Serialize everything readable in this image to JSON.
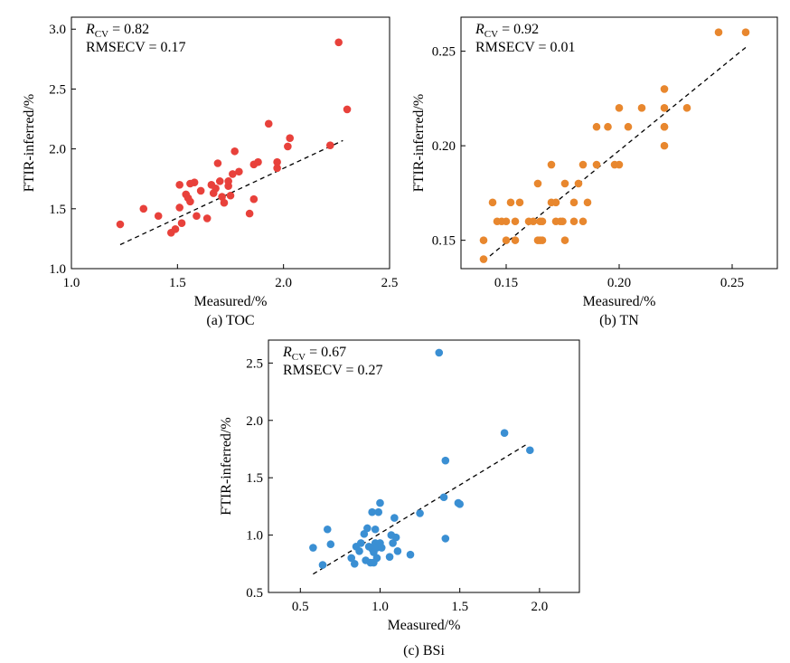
{
  "chart_data": [
    {
      "type": "scatter",
      "caption": "(a) TOC",
      "xlabel": "Measured/%",
      "ylabel": "FTIR-inferred/%",
      "xlim": [
        1.0,
        2.5
      ],
      "ylim": [
        1.0,
        3.1
      ],
      "xticks": [
        "1.0",
        "1.5",
        "2.0",
        "2.5"
      ],
      "yticks": [
        "1.0",
        "1.5",
        "2.0",
        "2.5",
        "3.0"
      ],
      "stat_r_symbol": "R",
      "stat_r_sub": "CV",
      "stat_r_value": " = 0.82",
      "stat_rmse": "RMSECV = 0.17",
      "color": "#e8413b",
      "fit_line": [
        [
          1.23,
          1.2
        ],
        [
          2.28,
          2.07
        ]
      ],
      "x": [
        1.23,
        1.34,
        1.41,
        1.47,
        1.49,
        1.51,
        1.52,
        1.54,
        1.55,
        1.56,
        1.56,
        1.58,
        1.59,
        1.61,
        1.64,
        1.66,
        1.67,
        1.68,
        1.69,
        1.7,
        1.71,
        1.72,
        1.74,
        1.74,
        1.75,
        1.76,
        1.77,
        1.79,
        1.84,
        1.86,
        1.86,
        1.88,
        1.93,
        1.97,
        1.97,
        2.02,
        2.03,
        2.22,
        2.26,
        2.3,
        1.51
      ],
      "y": [
        1.37,
        1.5,
        1.44,
        1.3,
        1.33,
        1.51,
        1.38,
        1.62,
        1.59,
        1.71,
        1.56,
        1.72,
        1.44,
        1.65,
        1.42,
        1.7,
        1.63,
        1.67,
        1.88,
        1.73,
        1.6,
        1.55,
        1.69,
        1.73,
        1.61,
        1.79,
        1.98,
        1.81,
        1.46,
        1.87,
        1.58,
        1.89,
        2.21,
        1.89,
        1.84,
        2.02,
        2.09,
        2.03,
        2.89,
        2.33,
        1.7
      ]
    },
    {
      "type": "scatter",
      "caption": "(b) TN",
      "xlabel": "Measured/%",
      "ylabel": "FTIR-inferred/%",
      "xlim": [
        0.13,
        0.27
      ],
      "ylim": [
        0.135,
        0.268
      ],
      "xticks": [
        "0.15",
        "0.20",
        "0.25"
      ],
      "yticks": [
        "0.15",
        "0.20",
        "0.25"
      ],
      "stat_r_symbol": "R",
      "stat_r_sub": "CV",
      "stat_r_value": " = 0.92",
      "stat_rmse": "RMSECV = 0.01",
      "color": "#e8872e",
      "fit_line": [
        [
          0.14,
          0.139
        ],
        [
          0.256,
          0.252
        ]
      ],
      "x": [
        0.14,
        0.14,
        0.144,
        0.146,
        0.148,
        0.15,
        0.15,
        0.152,
        0.154,
        0.154,
        0.156,
        0.16,
        0.162,
        0.164,
        0.164,
        0.165,
        0.165,
        0.166,
        0.166,
        0.17,
        0.17,
        0.172,
        0.172,
        0.174,
        0.175,
        0.176,
        0.176,
        0.18,
        0.18,
        0.182,
        0.184,
        0.184,
        0.186,
        0.19,
        0.19,
        0.195,
        0.198,
        0.2,
        0.2,
        0.204,
        0.21,
        0.22,
        0.22,
        0.22,
        0.22,
        0.22,
        0.23,
        0.244,
        0.256
      ],
      "y": [
        0.14,
        0.15,
        0.17,
        0.16,
        0.16,
        0.15,
        0.16,
        0.17,
        0.15,
        0.16,
        0.17,
        0.16,
        0.16,
        0.15,
        0.18,
        0.16,
        0.15,
        0.15,
        0.16,
        0.19,
        0.17,
        0.17,
        0.16,
        0.16,
        0.16,
        0.15,
        0.18,
        0.17,
        0.16,
        0.18,
        0.16,
        0.19,
        0.17,
        0.21,
        0.19,
        0.21,
        0.19,
        0.22,
        0.19,
        0.21,
        0.22,
        0.23,
        0.22,
        0.21,
        0.2,
        0.21,
        0.22,
        0.26,
        0.26
      ]
    },
    {
      "type": "scatter",
      "caption": "(c) BSi",
      "xlabel": "Measured/%",
      "ylabel": "FTIR-inferred/%",
      "xlim": [
        0.3,
        2.25
      ],
      "ylim": [
        0.5,
        2.7
      ],
      "xticks": [
        "0.5",
        "1.0",
        "1.5",
        "2.0"
      ],
      "yticks": [
        "0.5",
        "1.0",
        "1.5",
        "2.0",
        "2.5"
      ],
      "stat_r_symbol": "R",
      "stat_r_sub": "CV",
      "stat_r_value": " = 0.67",
      "stat_rmse": "RMSECV = 0.27",
      "color": "#3a8fd3",
      "fit_line": [
        [
          0.58,
          0.66
        ],
        [
          1.93,
          1.8
        ]
      ],
      "x": [
        0.58,
        0.64,
        0.67,
        0.69,
        0.82,
        0.84,
        0.85,
        0.87,
        0.88,
        0.9,
        0.91,
        0.92,
        0.93,
        0.94,
        0.95,
        0.95,
        0.96,
        0.96,
        0.97,
        0.97,
        0.98,
        0.99,
        1.0,
        1.0,
        1.01,
        1.06,
        1.07,
        1.08,
        1.09,
        1.1,
        1.11,
        1.19,
        1.25,
        1.37,
        1.4,
        1.41,
        1.41,
        1.49,
        1.5,
        1.78,
        1.94,
        0.98
      ],
      "y": [
        0.89,
        0.74,
        1.05,
        0.92,
        0.8,
        0.75,
        0.9,
        0.86,
        0.93,
        1.01,
        0.78,
        1.06,
        0.9,
        0.76,
        0.88,
        1.2,
        0.85,
        0.76,
        1.05,
        0.93,
        0.89,
        1.2,
        1.28,
        0.93,
        0.89,
        0.81,
        1.0,
        0.93,
        1.15,
        0.98,
        0.86,
        0.83,
        1.19,
        2.59,
        1.33,
        1.65,
        0.97,
        1.28,
        1.27,
        1.89,
        1.74,
        0.8
      ]
    }
  ]
}
